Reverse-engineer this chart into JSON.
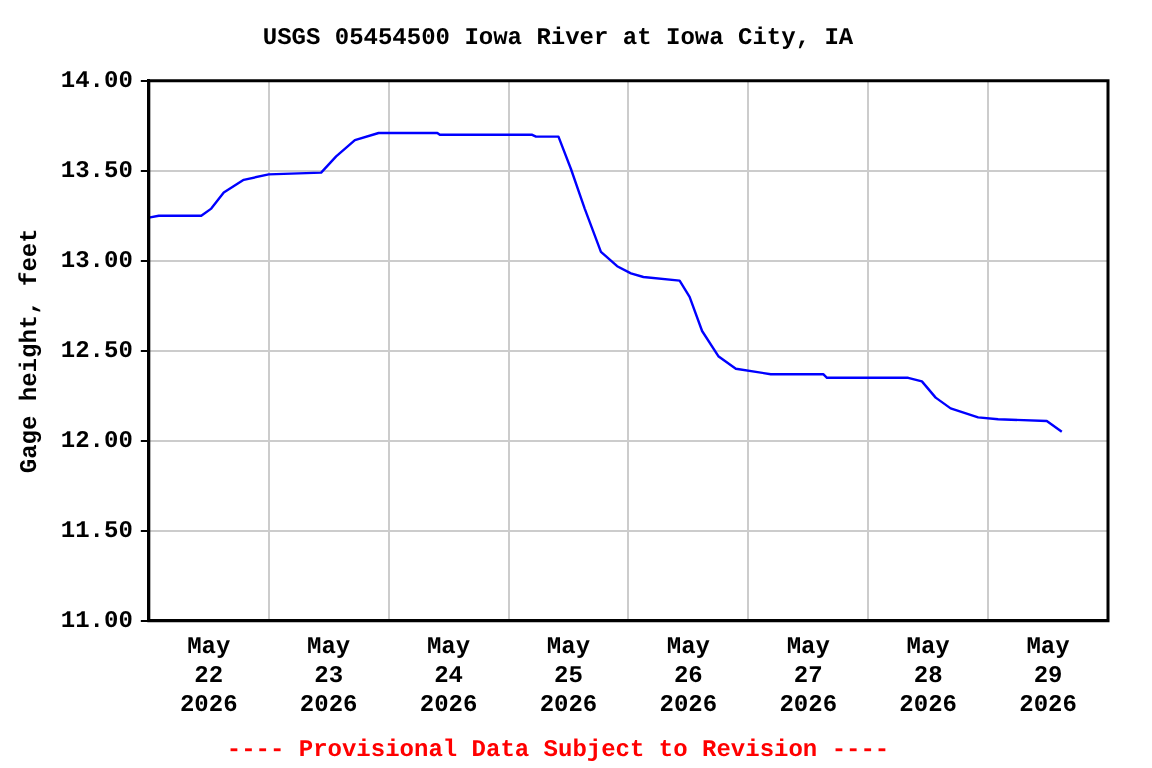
{
  "chart_data": {
    "type": "line",
    "title": "USGS 05454500 Iowa River at Iowa City, IA",
    "ylabel": "Gage height, feet",
    "annotations": [
      "---- Provisional Data Subject to Revision ----"
    ],
    "grid": true,
    "legend": false,
    "marker": "none",
    "line_style": "solid",
    "xlim": [
      "2026-05-22",
      "2026-05-30"
    ],
    "xticks": [
      {
        "value": "2026-05-22T12:00",
        "label": "May 22 2026"
      },
      {
        "value": "2026-05-23",
        "label": null
      },
      {
        "value": "2026-05-23T12:00",
        "label": "May 23 2026"
      },
      {
        "value": "2026-05-24",
        "label": null
      },
      {
        "value": "2026-05-24T12:00",
        "label": "May 24 2026"
      },
      {
        "value": "2026-05-25",
        "label": null
      },
      {
        "value": "2026-05-25T12:00",
        "label": "May 25 2026"
      },
      {
        "value": "2026-05-26",
        "label": null
      },
      {
        "value": "2026-05-26T12:00",
        "label": "May 26 2026"
      },
      {
        "value": "2026-05-27",
        "label": null
      },
      {
        "value": "2026-05-27T12:00",
        "label": "May 27 2026"
      },
      {
        "value": "2026-05-28",
        "label": null
      },
      {
        "value": "2026-05-28T12:00",
        "label": "May 28 2026"
      },
      {
        "value": "2026-05-29",
        "label": null
      },
      {
        "value": "2026-05-29T12:00",
        "label": "May 29 2026"
      }
    ],
    "ylim": [
      11,
      14
    ],
    "yticks": [
      {
        "value": 11,
        "label": "11.00"
      },
      {
        "value": 11.5,
        "label": "11.50"
      },
      {
        "value": 12,
        "label": "12.00"
      },
      {
        "value": 12.5,
        "label": "12.50"
      },
      {
        "value": 13,
        "label": "13.00"
      },
      {
        "value": 13.5,
        "label": "13.50"
      },
      {
        "value": 14,
        "label": "14.00"
      }
    ],
    "x": [
      "2026-05-22T00:00",
      "2026-05-22T02:00",
      "2026-05-22T10:30",
      "2026-05-22T12:30",
      "2026-05-22T15:00",
      "2026-05-22T19:00",
      "2026-05-23T00:00",
      "2026-05-23T10:30",
      "2026-05-23T13:30",
      "2026-05-23T17:15",
      "2026-05-23T22:00",
      "2026-05-24T09:45",
      "2026-05-24T10:15",
      "2026-05-25T04:45",
      "2026-05-25T05:30",
      "2026-05-25T10:00",
      "2026-05-25T12:30",
      "2026-05-25T15:15",
      "2026-05-25T18:30",
      "2026-05-25T21:45",
      "2026-05-26T00:30",
      "2026-05-26T03:00",
      "2026-05-26T10:15",
      "2026-05-26T12:15",
      "2026-05-26T14:45",
      "2026-05-26T18:00",
      "2026-05-26T21:30",
      "2026-05-27T04:30",
      "2026-05-27T15:00",
      "2026-05-27T15:45",
      "2026-05-28T08:00",
      "2026-05-28T10:45",
      "2026-05-28T13:30",
      "2026-05-28T16:30",
      "2026-05-28T22:00",
      "2026-05-29T02:00",
      "2026-05-29T11:45",
      "2026-05-29T14:45"
    ],
    "series": [
      {
        "color": "#0000ff",
        "values": [
          13.24,
          13.25,
          13.25,
          13.29,
          13.38,
          13.45,
          13.48,
          13.49,
          13.58,
          13.67,
          13.71,
          13.71,
          13.7,
          13.7,
          13.69,
          13.69,
          13.51,
          13.29,
          13.05,
          12.97,
          12.93,
          12.91,
          12.89,
          12.8,
          12.61,
          12.47,
          12.4,
          12.37,
          12.37,
          12.35,
          12.35,
          12.33,
          12.24,
          12.18,
          12.13,
          12.12,
          12.11,
          12.05
        ]
      }
    ]
  }
}
